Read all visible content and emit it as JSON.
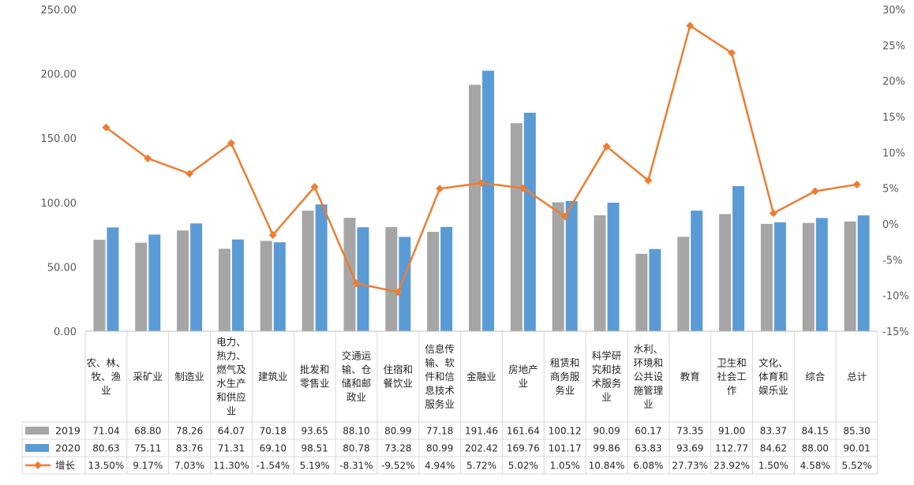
{
  "chart_data": {
    "type": "bar",
    "categories": [
      "农、林、牧、渔业",
      "采矿业",
      "制造业",
      "电力、热力、燃气及水生产和供应业",
      "建筑业",
      "批发和零售业",
      "交通运输、仓储和邮政业",
      "住宿和餐饮业",
      "信息传输、软件和信息技术服务业",
      "金融业",
      "房地产业",
      "租赁和商务服务业",
      "科学研究和技术服务业",
      "水利、环境和公共设施管理业",
      "教育",
      "卫生和社会工作",
      "文化、体育和娱乐业",
      "综合",
      "总计"
    ],
    "category_lines": [
      [
        "农、林、",
        "牧、渔",
        "业"
      ],
      [
        "采矿业"
      ],
      [
        "制造业"
      ],
      [
        "电力、",
        "热力、",
        "燃气及",
        "水生产",
        "和供应",
        "业"
      ],
      [
        "建筑业"
      ],
      [
        "批发和",
        "零售业"
      ],
      [
        "交通运",
        "输、仓",
        "储和邮",
        "政业"
      ],
      [
        "住宿和",
        "餐饮业"
      ],
      [
        "信息传",
        "输、软",
        "件和信",
        "息技术",
        "服务业"
      ],
      [
        "金融业"
      ],
      [
        "房地产",
        "业"
      ],
      [
        "租赁和",
        "商务服",
        "务业"
      ],
      [
        "科学研",
        "究和技",
        "术服务",
        "业"
      ],
      [
        "水利、",
        "环境和",
        "公共设",
        "施管理",
        "业"
      ],
      [
        "教育"
      ],
      [
        "卫生和",
        "社会工",
        "作"
      ],
      [
        "文化、",
        "体育和",
        "娱乐业"
      ],
      [
        "综合"
      ],
      [
        "总计"
      ]
    ],
    "series": [
      {
        "name": "2019",
        "kind": "bar",
        "axis": "left",
        "color": "#A5A5A5",
        "values": [
          71.04,
          68.8,
          78.26,
          64.07,
          70.18,
          93.65,
          88.1,
          80.99,
          77.18,
          191.46,
          161.64,
          100.12,
          90.09,
          60.17,
          73.35,
          91.0,
          83.37,
          84.15,
          85.3
        ],
        "labels": [
          "71.04",
          "68.80",
          "78.26",
          "64.07",
          "70.18",
          "93.65",
          "88.10",
          "80.99",
          "77.18",
          "191.46",
          "161.64",
          "100.12",
          "90.09",
          "60.17",
          "73.35",
          "91.00",
          "83.37",
          "84.15",
          "85.30"
        ]
      },
      {
        "name": "2020",
        "kind": "bar",
        "axis": "left",
        "color": "#5B9BD5",
        "values": [
          80.63,
          75.11,
          83.76,
          71.31,
          69.1,
          98.51,
          80.78,
          73.28,
          80.99,
          202.42,
          169.76,
          101.17,
          99.86,
          63.83,
          93.69,
          112.77,
          84.62,
          88.0,
          90.01
        ],
        "labels": [
          "80.63",
          "75.11",
          "83.76",
          "71.31",
          "69.10",
          "98.51",
          "80.78",
          "73.28",
          "80.99",
          "202.42",
          "169.76",
          "101.17",
          "99.86",
          "63.83",
          "93.69",
          "112.77",
          "84.62",
          "88.00",
          "90.01"
        ]
      },
      {
        "name": "增长",
        "kind": "line",
        "axis": "right",
        "color": "#ED7D31",
        "values": [
          13.5,
          9.17,
          7.03,
          11.3,
          -1.54,
          5.19,
          -8.31,
          -9.52,
          4.94,
          5.72,
          5.02,
          1.05,
          10.84,
          6.08,
          27.73,
          23.92,
          1.5,
          4.58,
          5.52
        ],
        "labels": [
          "13.50%",
          "9.17%",
          "7.03%",
          "11.30%",
          "-1.54%",
          "5.19%",
          "-8.31%",
          "-9.52%",
          "4.94%",
          "5.72%",
          "5.02%",
          "1.05%",
          "10.84%",
          "6.08%",
          "27.73%",
          "23.92%",
          "1.50%",
          "4.58%",
          "5.52%"
        ]
      }
    ],
    "y_left": {
      "min": 0,
      "max": 250,
      "step": 50,
      "tick_labels": [
        "0.00",
        "50.00",
        "100.00",
        "150.00",
        "200.00",
        "250.00"
      ]
    },
    "y_right": {
      "min": -15,
      "max": 30,
      "step": 5,
      "tick_labels": [
        "-15%",
        "-10%",
        "-5%",
        "0%",
        "5%",
        "10%",
        "15%",
        "20%",
        "25%",
        "30%"
      ]
    },
    "grid": false,
    "legend": "data-table",
    "title": "",
    "xlabel": "",
    "ylabel": ""
  }
}
